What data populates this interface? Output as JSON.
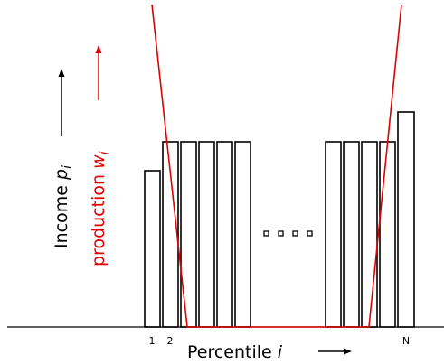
{
  "diagram": {
    "x_axis": {
      "label": "Percentile",
      "symbol": "i",
      "tick_labels": [
        "1",
        "2",
        "N"
      ]
    },
    "y_axis_income": {
      "label": "Income",
      "symbol": "p",
      "subscript": "i",
      "color": "#000000"
    },
    "y_axis_production": {
      "label": "production",
      "symbol": "w",
      "subscript": "i",
      "color": "#e00000"
    },
    "ellipsis": "....",
    "bars_left": [
      "1",
      "2",
      "3",
      "4",
      "5"
    ],
    "bars_right": [
      "N-4",
      "N-3",
      "N-2",
      "N-1",
      "N"
    ],
    "colors": {
      "bars": "#000000",
      "production_curve": "#e00000",
      "background": "#ffffff"
    }
  }
}
